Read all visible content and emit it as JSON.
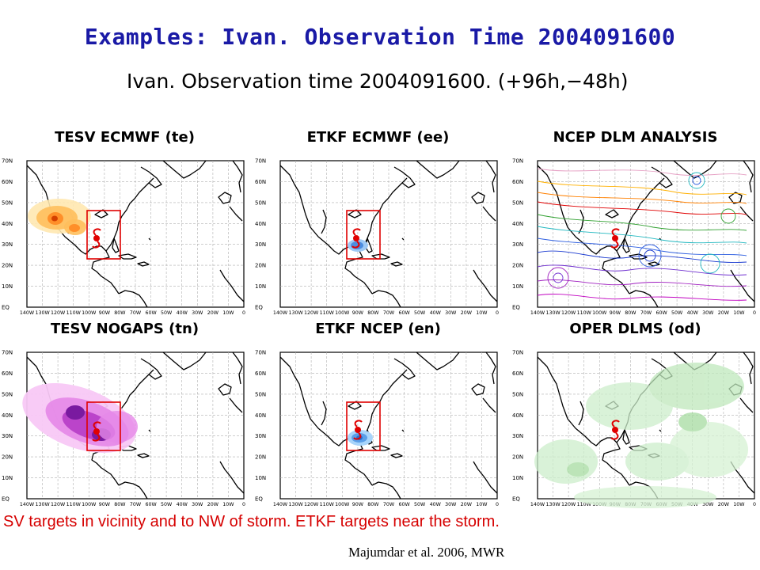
{
  "slide_title": "Examples: Ivan. Observation Time 2004091600",
  "figure_title": "Ivan. Observation time 2004091600. (+96h,−48h)",
  "panels": [
    {
      "title": "TESV ECMWF (te)",
      "field": "TESV sensitivity (orange)",
      "box": true
    },
    {
      "title": "ETKF ECMWF (ee)",
      "field": "ETKF signal (blue, near storm)",
      "box": true
    },
    {
      "title": "NCEP DLM ANALYSIS",
      "field": "deep-layer-mean streamlines",
      "box": false
    },
    {
      "title": "TESV NOGAPS (tn)",
      "field": "TESV sensitivity (magenta)",
      "box": true
    },
    {
      "title": "ETKF NCEP (en)",
      "field": "ETKF signal (blue, near storm)",
      "box": true
    },
    {
      "title": "OPER DLMS (od)",
      "field": "operational DLM (light green)",
      "box": false
    }
  ],
  "lat_labels": [
    "70N",
    "60N",
    "50N",
    "40N",
    "30N",
    "20N",
    "10N",
    "EQ"
  ],
  "lon_labels": [
    "140W",
    "130W",
    "120W",
    "110W",
    "100W",
    "90W",
    "80W",
    "70W",
    "60W",
    "50W",
    "40W",
    "30W",
    "20W",
    "10W",
    "0"
  ],
  "colors": {
    "title": "#1a1aa6",
    "caption": "#d60000",
    "target_box": "#e00000",
    "storm": "#e00000"
  },
  "icons": {
    "storm": "hurricane-symbol-icon"
  },
  "caption": "SV targets in vicinity and to NW of storm.  ETKF targets near the storm.",
  "citation": "Majumdar et al. 2006, MWR"
}
